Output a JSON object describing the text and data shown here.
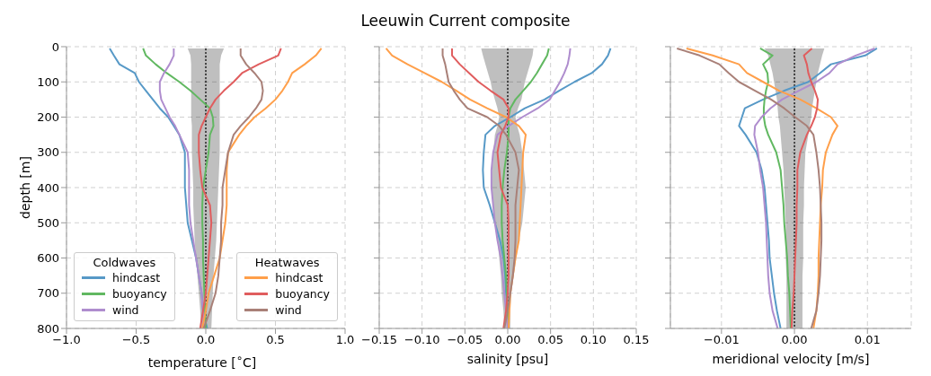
{
  "chart_data": [
    {
      "type": "line",
      "orientation": "horizontal",
      "xlabel": "temperature [$^{∘}$C]",
      "ylabel": "depth [m]",
      "legend_title": [
        "Coldwaves",
        "Heatwaves"
      ],
      "legend": "bottom",
      "grid": true,
      "x": [
        5,
        25,
        50,
        75,
        100,
        125,
        150,
        175,
        200,
        225,
        250,
        300,
        350,
        400,
        450,
        500,
        550,
        600,
        650,
        700,
        750,
        800
      ],
      "xlim": [
        -1,
        1
      ],
      "xticks": [
        {
          "value": -1,
          "label": "−1.0"
        },
        {
          "value": -0.5,
          "label": "−0.5"
        },
        {
          "value": 0,
          "label": "0.0"
        },
        {
          "value": 0.5,
          "label": "0.5"
        },
        {
          "value": 1,
          "label": "1.0"
        }
      ],
      "ylim": [
        800,
        0
      ],
      "yticks": [
        0,
        100,
        200,
        300,
        400,
        500,
        600,
        700,
        800
      ],
      "series": [
        {
          "type": "line",
          "color": "#000000",
          "line_style": "dotted",
          "values": [
            0,
            0,
            0,
            0,
            0,
            0,
            0,
            0,
            0,
            0,
            0,
            0,
            0,
            0,
            0,
            0,
            0,
            0,
            0,
            0,
            0,
            0
          ],
          "lower": [
            -0.13,
            -0.11,
            -0.105,
            -0.105,
            -0.105,
            -0.105,
            -0.105,
            -0.105,
            -0.105,
            -0.1,
            -0.1,
            -0.1,
            -0.095,
            -0.09,
            -0.09,
            -0.085,
            -0.08,
            -0.07,
            -0.06,
            -0.05,
            -0.04,
            -0.035
          ],
          "upper": [
            0.13,
            0.11,
            0.1,
            0.1,
            0.1,
            0.1,
            0.1,
            0.1,
            0.1,
            0.1,
            0.1,
            0.1,
            0.095,
            0.09,
            0.085,
            0.08,
            0.075,
            0.065,
            0.055,
            0.05,
            0.045,
            0.04
          ]
        },
        {
          "name": "hindcast",
          "color": "#5799c7",
          "values": [
            -0.69,
            -0.66,
            -0.62,
            -0.51,
            -0.48,
            -0.43,
            -0.38,
            -0.33,
            -0.27,
            -0.23,
            -0.19,
            -0.15,
            -0.15,
            -0.15,
            -0.14,
            -0.13,
            -0.1,
            -0.07,
            -0.05,
            -0.03,
            -0.02,
            0.01
          ]
        },
        {
          "name": "buoyancy",
          "color": "#61b861",
          "values": [
            -0.45,
            -0.43,
            -0.36,
            -0.28,
            -0.19,
            -0.11,
            -0.04,
            0.03,
            0.05,
            0.055,
            0.03,
            0.02,
            0,
            -0.02,
            -0.025,
            -0.025,
            -0.02,
            -0.02,
            -0.015,
            -0.01,
            -0.005,
            0
          ]
        },
        {
          "name": "wind",
          "color": "#af8dce",
          "values": [
            -0.23,
            -0.23,
            -0.26,
            -0.3,
            -0.33,
            -0.33,
            -0.32,
            -0.29,
            -0.26,
            -0.22,
            -0.19,
            -0.13,
            -0.12,
            -0.12,
            -0.12,
            -0.11,
            -0.09,
            -0.07,
            -0.05,
            -0.03,
            -0.02,
            -0.015
          ]
        },
        {
          "name": "hindcast",
          "color": "#ff9f4a",
          "values": [
            0.83,
            0.79,
            0.71,
            0.62,
            0.59,
            0.55,
            0.5,
            0.43,
            0.35,
            0.29,
            0.24,
            0.16,
            0.15,
            0.15,
            0.15,
            0.14,
            0.12,
            0.1,
            0.06,
            0.02,
            0,
            -0.025
          ]
        },
        {
          "name": "buoyancy",
          "color": "#e05d5e",
          "values": [
            0.54,
            0.52,
            0.38,
            0.26,
            0.2,
            0.13,
            0.07,
            0.03,
            0,
            -0.03,
            -0.05,
            -0.05,
            -0.04,
            -0.025,
            0.03,
            0.04,
            0.03,
            0.02,
            0.01,
            0,
            -0.02,
            -0.04
          ]
        },
        {
          "name": "wind",
          "color": "#a98078",
          "values": [
            0.25,
            0.25,
            0.29,
            0.35,
            0.4,
            0.41,
            0.4,
            0.36,
            0.31,
            0.25,
            0.2,
            0.16,
            0.14,
            0.12,
            0.12,
            0.11,
            0.11,
            0.1,
            0.09,
            0.07,
            0.03,
            -0.015
          ]
        }
      ]
    },
    {
      "type": "line",
      "title": "Leeuwin Current composite",
      "orientation": "horizontal",
      "xlabel": "salinity [psu]",
      "grid": true,
      "tick_labels": "x",
      "x": [
        5,
        25,
        50,
        75,
        100,
        125,
        150,
        175,
        200,
        225,
        250,
        300,
        350,
        400,
        450,
        500,
        550,
        600,
        650,
        700,
        750,
        800
      ],
      "xlim": [
        -0.15,
        0.15
      ],
      "xticks": [
        {
          "value": -0.15,
          "label": "−0.15"
        },
        {
          "value": -0.1,
          "label": "−0.10"
        },
        {
          "value": -0.05,
          "label": "−0.05"
        },
        {
          "value": 0,
          "label": "0.00"
        },
        {
          "value": 0.05,
          "label": "0.05"
        },
        {
          "value": 0.1,
          "label": "0.10"
        },
        {
          "value": 0.15,
          "label": "0.15"
        }
      ],
      "ylim": [
        800,
        0
      ],
      "yticks": [
        0,
        100,
        200,
        300,
        400,
        500,
        600,
        700,
        800
      ],
      "series": [
        {
          "type": "line",
          "color": "#000000",
          "line_style": "dotted",
          "values": [
            0,
            0,
            0,
            0,
            0,
            0,
            0,
            0,
            0,
            0,
            0,
            0,
            0,
            0,
            0,
            0,
            0,
            0,
            0,
            0,
            0,
            0
          ],
          "lower": [
            -0.031,
            -0.029,
            -0.026,
            -0.023,
            -0.02,
            -0.018,
            -0.015,
            -0.012,
            -0.01,
            -0.012,
            -0.015,
            -0.017,
            -0.018,
            -0.019,
            -0.017,
            -0.015,
            -0.012,
            -0.01,
            -0.008,
            -0.007,
            -0.005,
            -0.004
          ],
          "upper": [
            0.03,
            0.029,
            0.026,
            0.023,
            0.02,
            0.018,
            0.016,
            0.012,
            0.009,
            0.011,
            0.014,
            0.017,
            0.019,
            0.021,
            0.019,
            0.017,
            0.013,
            0.01,
            0.007,
            0.004,
            0.003,
            0.003
          ]
        },
        {
          "color": "#5799c7",
          "values": [
            0.12,
            0.117,
            0.11,
            0.098,
            0.078,
            0.06,
            0.043,
            0.02,
            0.003,
            -0.015,
            -0.026,
            -0.028,
            -0.029,
            -0.028,
            -0.021,
            -0.015,
            -0.009,
            -0.005,
            -0.003,
            -0.002,
            0,
            0.001
          ]
        },
        {
          "color": "#61b861",
          "values": [
            0.048,
            0.046,
            0.04,
            0.034,
            0.027,
            0.018,
            0.009,
            0.003,
            0.001,
            0.001,
            0.001,
            -0.001,
            -0.004,
            -0.006,
            -0.007,
            -0.007,
            -0.006,
            -0.004,
            -0.002,
            -0.001,
            0,
            0.001
          ]
        },
        {
          "color": "#af8dce",
          "values": [
            0.073,
            0.072,
            0.07,
            0.066,
            0.061,
            0.055,
            0.049,
            0.035,
            0.017,
            0.001,
            -0.012,
            -0.017,
            -0.019,
            -0.019,
            -0.017,
            -0.015,
            -0.012,
            -0.008,
            -0.006,
            -0.004,
            -0.002,
            0
          ]
        },
        {
          "color": "#ff9f4a",
          "values": [
            -0.142,
            -0.135,
            -0.117,
            -0.097,
            -0.077,
            -0.06,
            -0.044,
            -0.024,
            -0.002,
            0.013,
            0.021,
            0.018,
            0.017,
            0.016,
            0.015,
            0.014,
            0.013,
            0.009,
            0.006,
            0.003,
            0.002,
            0.001
          ]
        },
        {
          "color": "#e05d5e",
          "values": [
            -0.065,
            -0.065,
            -0.056,
            -0.045,
            -0.034,
            -0.02,
            -0.005,
            0.001,
            0.001,
            -0.003,
            -0.008,
            -0.012,
            -0.01,
            -0.008,
            0,
            0.001,
            0.001,
            0.001,
            0.001,
            0,
            -0.002,
            -0.005
          ]
        },
        {
          "color": "#a98078",
          "values": [
            -0.076,
            -0.076,
            -0.073,
            -0.071,
            -0.069,
            -0.063,
            -0.056,
            -0.047,
            -0.024,
            -0.01,
            -0.002,
            0.009,
            0.013,
            0.011,
            0.009,
            0.009,
            0.009,
            0.008,
            0.006,
            0.003,
            0,
            -0.004
          ]
        }
      ]
    },
    {
      "type": "line",
      "orientation": "horizontal",
      "xlabel": "meridional velocity [m/s]",
      "grid": true,
      "tick_labels": "x",
      "x": [
        5,
        25,
        50,
        75,
        100,
        125,
        150,
        175,
        200,
        225,
        250,
        300,
        350,
        400,
        450,
        500,
        550,
        600,
        650,
        700,
        750,
        800
      ],
      "xlim": [
        -0.017,
        0.016
      ],
      "xticks": [
        {
          "value": -0.01,
          "label": "−0.01"
        },
        {
          "value": 0,
          "label": "0.00"
        },
        {
          "value": 0.01,
          "label": "0.01"
        }
      ],
      "ylim": [
        800,
        0
      ],
      "yticks": [
        0,
        100,
        200,
        300,
        400,
        500,
        600,
        700,
        800
      ],
      "series": [
        {
          "type": "line",
          "color": "#000000",
          "line_style": "dotted",
          "values": [
            0,
            0,
            0,
            0,
            0,
            0,
            0,
            0,
            0,
            0,
            0,
            0,
            0,
            0,
            0,
            0,
            0,
            0,
            0,
            0,
            0,
            0
          ],
          "lower": [
            -0.0041,
            -0.0036,
            -0.0033,
            -0.003,
            -0.0028,
            -0.0026,
            -0.0024,
            -0.0023,
            -0.0022,
            -0.002,
            -0.0019,
            -0.0017,
            -0.0015,
            -0.0014,
            -0.0013,
            -0.0012,
            -0.0012,
            -0.0012,
            -0.0011,
            -0.0011,
            -0.0011,
            -0.0011
          ],
          "upper": [
            0.0041,
            0.0038,
            0.0035,
            0.0032,
            0.003,
            0.0028,
            0.0026,
            0.0024,
            0.0023,
            0.0021,
            0.0019,
            0.0015,
            0.0014,
            0.0013,
            0.0013,
            0.0012,
            0.0012,
            0.0012,
            0.0011,
            0.0011,
            0.0011,
            0.0011
          ]
        },
        {
          "color": "#5799c7",
          "values": [
            0.0113,
            0.0097,
            0.005,
            0.0035,
            0.0019,
            -0.0014,
            -0.0043,
            -0.0068,
            -0.0072,
            -0.0076,
            -0.0067,
            -0.0052,
            -0.0045,
            -0.0041,
            -0.0039,
            -0.0037,
            -0.0035,
            -0.0034,
            -0.0031,
            -0.0028,
            -0.0024,
            -0.0019
          ]
        },
        {
          "color": "#61b861",
          "values": [
            -0.0047,
            -0.003,
            -0.0043,
            -0.0037,
            -0.0036,
            -0.0039,
            -0.0041,
            -0.0042,
            -0.0042,
            -0.004,
            -0.0036,
            -0.0025,
            -0.0019,
            -0.0017,
            -0.0015,
            -0.0014,
            -0.0012,
            -0.001,
            -0.0009,
            -0.0007,
            -0.0006,
            -0.0005
          ]
        },
        {
          "color": "#af8dce",
          "values": [
            0.011,
            0.0084,
            0.0059,
            0.0048,
            0.003,
            0.0006,
            -0.0017,
            -0.0033,
            -0.0045,
            -0.0054,
            -0.0055,
            -0.005,
            -0.0047,
            -0.0043,
            -0.0041,
            -0.0039,
            -0.0038,
            -0.0037,
            -0.0036,
            -0.0034,
            -0.003,
            -0.0023
          ]
        },
        {
          "color": "#ff9f4a",
          "values": [
            -0.0148,
            -0.0112,
            -0.0076,
            -0.0065,
            -0.0043,
            -0.0021,
            0.0008,
            0.003,
            0.005,
            0.0059,
            0.0052,
            0.0043,
            0.0039,
            0.0038,
            0.0036,
            0.0035,
            0.0034,
            0.0033,
            0.0033,
            0.0032,
            0.003,
            0.0026
          ]
        },
        {
          "color": "#e05d5e",
          "values": [
            0.0024,
            0.0013,
            0.0017,
            0.0019,
            0.0023,
            0.0028,
            0.0032,
            0.0031,
            0.0028,
            0.0023,
            0.0017,
            0.0008,
            0.0004,
            0.0004,
            0.0003,
            0.0003,
            0.0002,
            0.0001,
            0,
            -0.0001,
            -0.0003,
            -0.0004
          ]
        },
        {
          "color": "#a98078",
          "values": [
            -0.0161,
            -0.013,
            -0.0103,
            -0.009,
            -0.0076,
            -0.0054,
            -0.0032,
            -0.0014,
            0.0001,
            0.0017,
            0.0026,
            0.003,
            0.0033,
            0.0035,
            0.0036,
            0.0037,
            0.0037,
            0.0036,
            0.0035,
            0.0033,
            0.003,
            0.0023
          ]
        }
      ]
    }
  ]
}
